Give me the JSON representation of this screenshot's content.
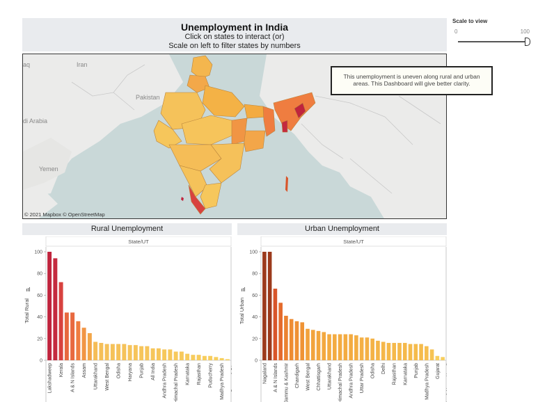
{
  "title": {
    "main": "Unemployment in India",
    "line1": "Click on states to interact (or)",
    "line2": "Scale on left to filter states by numbers"
  },
  "scale": {
    "label": "Scale to view",
    "min": "0",
    "max": "100",
    "value": 100
  },
  "map": {
    "labels": [
      "Iran",
      "Pakistan",
      "di Arabia",
      "Yemen",
      "aq"
    ],
    "tooltip": "This unemployment is uneven along rural and urban areas. This Dashboard will give better clarity.",
    "copyright": "© 2021 Mapbox © OpenStreetMap"
  },
  "colors": {
    "high": "#c0243d",
    "mid": "#ee7a3e",
    "low": "#f6c65b",
    "urban_high": "#9c3a1c"
  },
  "chart_data": [
    {
      "type": "bar",
      "title": "Rural Unemployment",
      "header": "State/UT",
      "ylabel": "Total Rural",
      "ylim": [
        0,
        100
      ],
      "yticks": [
        0,
        20,
        40,
        60,
        80,
        100
      ],
      "tick_labels": [
        "Lakshadweep",
        "Kerala",
        "A & N Islands",
        "Assam",
        "Uttarakhand",
        "West Bengal",
        "Odisha",
        "Haryana",
        "Punjab",
        "All India",
        "Andhra Pradesh",
        "Himachal Pradesh",
        "Karnataka",
        "Rajasthan",
        "Puducherry",
        "Madhya Pradesh",
        "Daman & Diu",
        "Chandigarh"
      ],
      "values": [
        100,
        94,
        72,
        44,
        44,
        36,
        30,
        25,
        17,
        16,
        15,
        15,
        15,
        15,
        14,
        14,
        13,
        13,
        11,
        11,
        10,
        10,
        8,
        8,
        6,
        5,
        5,
        4,
        4,
        3,
        2,
        1
      ],
      "colors": [
        "#c0243d",
        "#c42a3f",
        "#d8423f",
        "#e7683f",
        "#e8693f",
        "#ef7d40",
        "#f19544",
        "#f3a649",
        "#f5bd57",
        "#f5bf58",
        "#f5c15a",
        "#f5c25a",
        "#f5c25a",
        "#f5c25a",
        "#f6c45b",
        "#f6c45b",
        "#f6c55b",
        "#f6c55b",
        "#f6c65b",
        "#f6c65b",
        "#f6c75c",
        "#f6c75c",
        "#f7c95c",
        "#f7c95c",
        "#f7cb5d",
        "#f7cc5d",
        "#f7cc5d",
        "#f7cd5d",
        "#f7cd5d",
        "#f7ce5e",
        "#f7cf5e",
        "#f7d05e"
      ]
    },
    {
      "type": "bar",
      "title": "Urban Unemployment",
      "header": "State/UT",
      "ylabel": "Total Urban",
      "ylim": [
        0,
        100
      ],
      "yticks": [
        0,
        20,
        40,
        60,
        80,
        100
      ],
      "tick_labels": [
        "Nagaland",
        "A & N Islands",
        "Jammu & Kashmir",
        "Chandigarh",
        "West Bengal",
        "Chhattisgarh",
        "Uttarakhand",
        "Himachal Pradesh",
        "Andhra Pradesh",
        "Uttar Pradesh",
        "Odisha",
        "Delhi",
        "Rajasthan",
        "Karnataka",
        "Punjab",
        "Madhya Pradesh",
        "Gujarat",
        "Dadra & Nagar Haveli"
      ],
      "values": [
        100,
        100,
        66,
        53,
        41,
        38,
        36,
        35,
        29,
        28,
        27,
        26,
        24,
        24,
        24,
        24,
        24,
        23,
        21,
        21,
        20,
        18,
        17,
        16,
        16,
        16,
        16,
        15,
        15,
        15,
        13,
        10,
        4,
        3
      ],
      "colors": [
        "#9c3a1c",
        "#9c3a1c",
        "#d8552a",
        "#e46b2c",
        "#eb8230",
        "#ee8c32",
        "#ef9134",
        "#ef9335",
        "#f2a23c",
        "#f2a43d",
        "#f2a63e",
        "#f3a83f",
        "#f3ab41",
        "#f3ab41",
        "#f3ab41",
        "#f3ab41",
        "#f3ab41",
        "#f3ad42",
        "#f4b045",
        "#f4b045",
        "#f4b246",
        "#f4b548",
        "#f5b74a",
        "#f5b94b",
        "#f5b94b",
        "#f5b94b",
        "#f5b94b",
        "#f5bb4c",
        "#f5bb4c",
        "#f5bb4c",
        "#f6be4f",
        "#f6c353",
        "#f7cd5d",
        "#f7ce5e"
      ]
    }
  ]
}
